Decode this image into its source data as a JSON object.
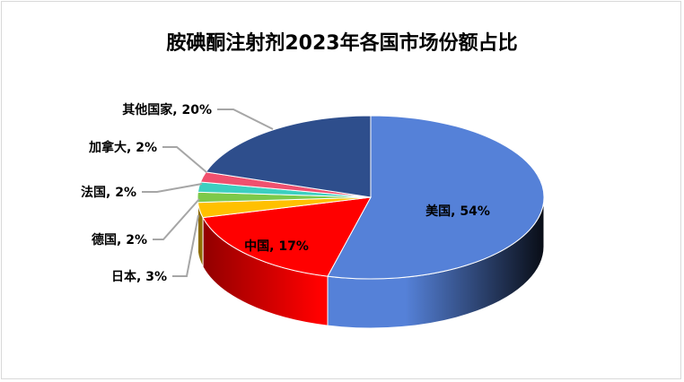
{
  "chart_data": {
    "type": "pie",
    "title": "胺碘酮注射剂2023年各国市场份额占比",
    "style": "3d",
    "start": "top, clockwise",
    "slices": [
      {
        "label": "美国",
        "value": 54,
        "text": "美国, 54%",
        "color": "#5581d8"
      },
      {
        "label": "中国",
        "value": 17,
        "text": "中国, 17%",
        "color": "#ff0000"
      },
      {
        "label": "日本",
        "value": 3,
        "text": "日本, 3%",
        "color": "#ffc000"
      },
      {
        "label": "德国",
        "value": 2,
        "text": "德国, 2%",
        "color": "#7dc94a"
      },
      {
        "label": "法国",
        "value": 2,
        "text": "法国, 2%",
        "color": "#3ccfc0"
      },
      {
        "label": "加拿大",
        "value": 2,
        "text": "加拿大, 2%",
        "color": "#f0506e"
      },
      {
        "label": "其他国家",
        "value": 20,
        "text": "其他国家, 20%",
        "color": "#2e4e8c"
      }
    ]
  }
}
